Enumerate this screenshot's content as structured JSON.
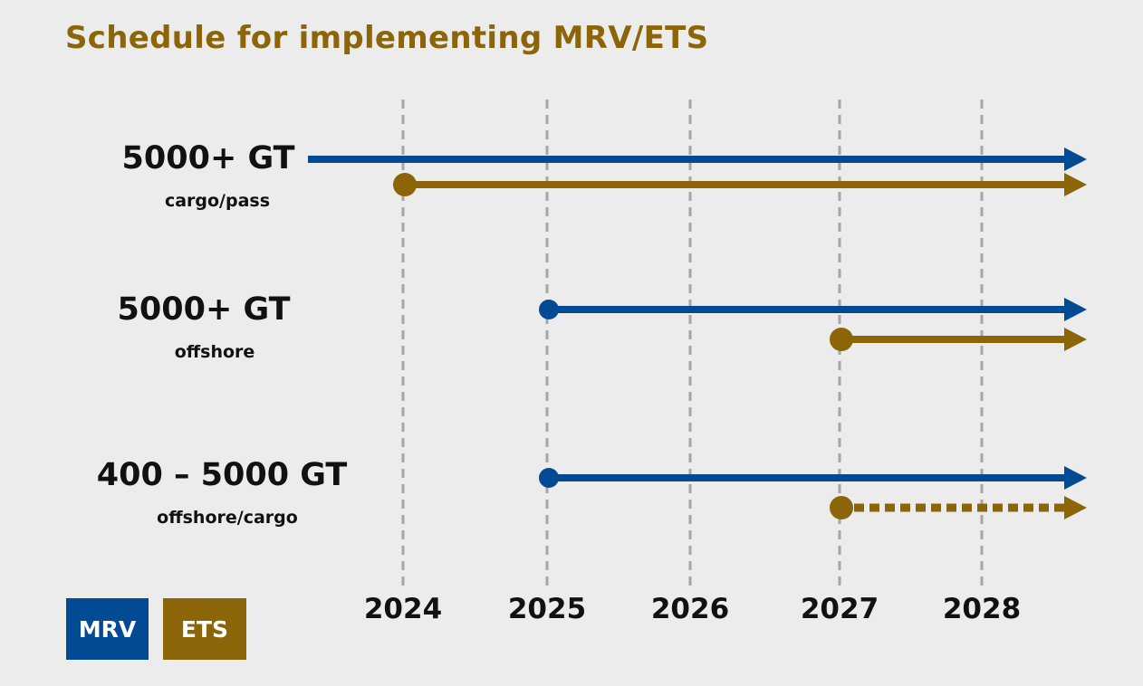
{
  "title": "Schedule for implementing MRV/ETS",
  "colors": {
    "mrv": "#004b93",
    "ets": "#8b6508",
    "grid": "#a6a6a6",
    "background": "#ececec"
  },
  "legend": {
    "mrv": "MRV",
    "ets": "ETS"
  },
  "chart_data": {
    "type": "gantt-timeline",
    "title": "Schedule for implementing MRV/ETS",
    "x_ticks": [
      "2024",
      "2025",
      "2026",
      "2027",
      "2028"
    ],
    "categories": [
      {
        "main": "5000+ GT",
        "sub": "cargo/pass"
      },
      {
        "main": "5000+ GT",
        "sub": "offshore"
      },
      {
        "main": "400 – 5000 GT",
        "sub": "offshore/cargo"
      }
    ],
    "series": [
      {
        "name": "MRV",
        "color": "#004b93",
        "bars": [
          {
            "category": 0,
            "start": "before 2024",
            "start_marker": false,
            "style": "solid",
            "open_ended": true
          },
          {
            "category": 1,
            "start": "2025",
            "start_marker": true,
            "style": "solid",
            "open_ended": true
          },
          {
            "category": 2,
            "start": "2025",
            "start_marker": true,
            "style": "solid",
            "open_ended": true
          }
        ]
      },
      {
        "name": "ETS",
        "color": "#8b6508",
        "bars": [
          {
            "category": 0,
            "start": "2024",
            "start_marker": true,
            "style": "solid",
            "open_ended": true
          },
          {
            "category": 1,
            "start": "2027",
            "start_marker": true,
            "style": "solid",
            "open_ended": true
          },
          {
            "category": 2,
            "start": "2027",
            "start_marker": true,
            "style": "dotted",
            "open_ended": true
          }
        ]
      }
    ],
    "grid": "vertical dashed at each year",
    "legend_position": "bottom-left"
  }
}
